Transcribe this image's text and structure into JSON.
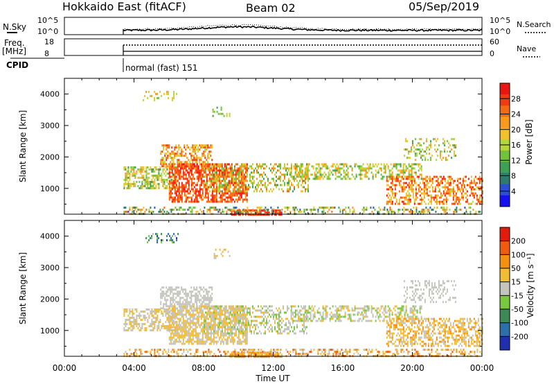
{
  "header": {
    "title": "Hokkaido East (fitACF)",
    "beam": "Beam 02",
    "date": "05/Sep/2019"
  },
  "top_panels": {
    "nsky": {
      "label": "N.Sky",
      "tick_hi": "10^5",
      "tick_lo": "10^0",
      "right_hi": "10^5",
      "right_lo": "10^0",
      "right_label": "N.Search"
    },
    "freq": {
      "label_1": "Freq.",
      "label_2": "[MHz]",
      "tick_hi": "18",
      "tick_lo": "8",
      "right_hi": "60",
      "right_lo": "0",
      "right_label": "Nave"
    },
    "cpid": {
      "label": "CPID",
      "value": "normal (fast) 151"
    }
  },
  "chart_data": [
    {
      "type": "heatmap",
      "name": "power",
      "ylabel": "Slant Range [km]",
      "ylim": [
        180,
        4500
      ],
      "yticks": [
        1000,
        2000,
        3000,
        4000
      ],
      "colorbar_label": "Power [dB]",
      "colorbar_ticks": [
        "28",
        "24",
        "20",
        "16",
        "12",
        "8",
        "4"
      ],
      "colors": [
        "#1410f0",
        "#2c4fd0",
        "#2e7a6c",
        "#3fa055",
        "#72c23e",
        "#b5d53b",
        "#f2c12b",
        "#f89a1c",
        "#f26a14",
        "#ee3b12",
        "#e8160f"
      ]
    },
    {
      "type": "heatmap",
      "name": "velocity",
      "ylabel": "Slant Range [km]",
      "ylim": [
        180,
        4500
      ],
      "yticks": [
        1000,
        2000,
        3000,
        4000
      ],
      "colorbar_label": "Velocity [m s⁻¹]",
      "colorbar_ticks": [
        "200",
        "100",
        "50",
        "15",
        "-15",
        "-50",
        "-100",
        "-200"
      ],
      "colors": [
        "#1f2fb0",
        "#2d6fa8",
        "#3e8a57",
        "#79c940",
        "#c4c4bc",
        "#f2bc34",
        "#f3900f",
        "#f25a10",
        "#e51a0f"
      ]
    }
  ],
  "xaxis": {
    "label": "Time UT",
    "ticks": [
      "00:00",
      "04:00",
      "08:00",
      "12:00",
      "16:00",
      "20:00",
      "00:00"
    ],
    "xlim_hours": [
      0,
      24
    ]
  }
}
